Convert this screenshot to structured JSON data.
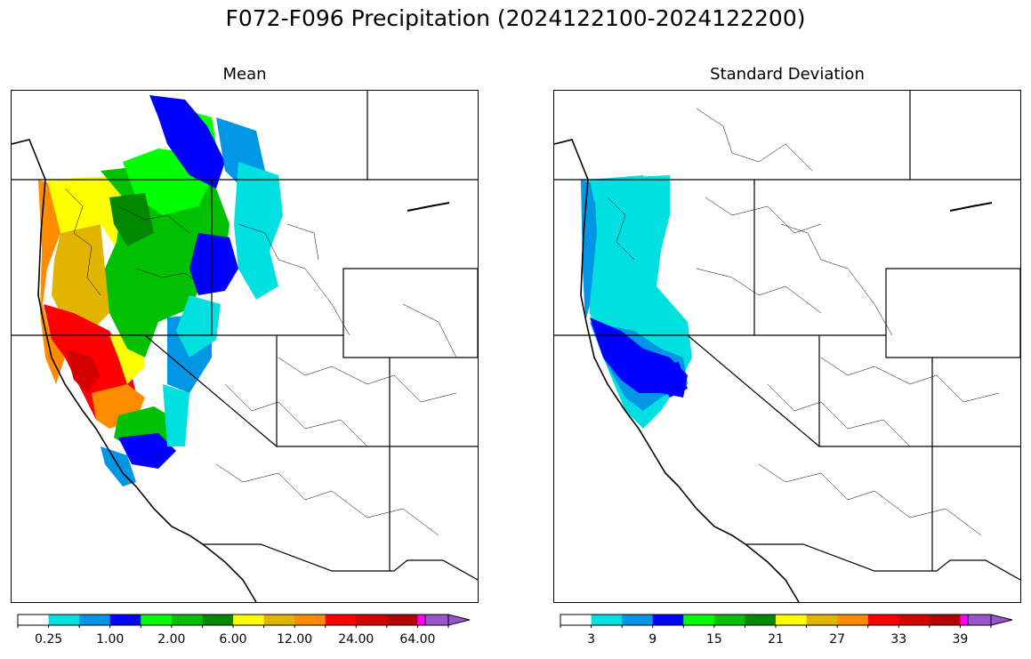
{
  "title": "F072-F096 Precipitation (2024122100-2024122200)",
  "panels": [
    {
      "title": "Mean"
    },
    {
      "title": "Standard Deviation"
    }
  ],
  "colorbars": [
    {
      "colors": [
        "#ffffff",
        "#00e0e0",
        "#0096e6",
        "#0000ff",
        "#00ff00",
        "#00c000",
        "#008800",
        "#ffff00",
        "#e0b400",
        "#ff8c00",
        "#ff0000",
        "#d50000",
        "#b40000",
        "#ff00ff",
        "#9955cc"
      ],
      "tick_labels": [
        "0.25",
        "1.00",
        "2.00",
        "6.00",
        "12.00",
        "24.00",
        "64.00"
      ],
      "tick_boundaries": [
        1,
        3,
        5,
        7,
        9,
        11,
        13
      ],
      "extend": "max"
    },
    {
      "colors": [
        "#ffffff",
        "#00e0e0",
        "#0096e6",
        "#0000ff",
        "#00ff00",
        "#00c000",
        "#008800",
        "#ffff00",
        "#e0b400",
        "#ff8c00",
        "#ff0000",
        "#d50000",
        "#b40000",
        "#ff00ff",
        "#9955cc"
      ],
      "tick_labels": [
        "3",
        "9",
        "15",
        "21",
        "27",
        "33",
        "39"
      ],
      "tick_boundaries": [
        1,
        3,
        5,
        7,
        9,
        11,
        13
      ],
      "extend": "max"
    }
  ]
}
